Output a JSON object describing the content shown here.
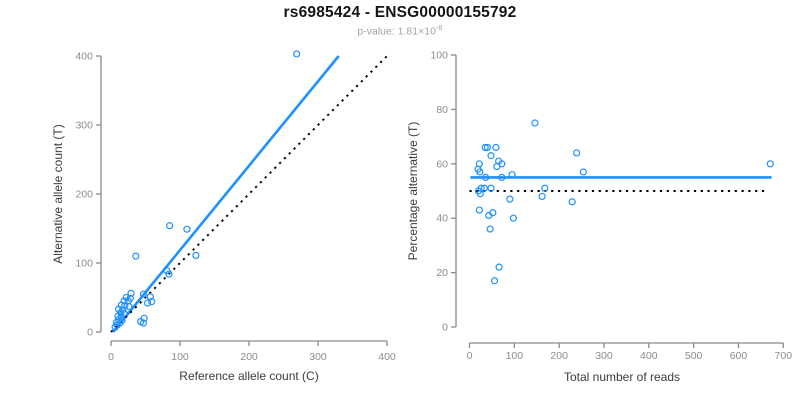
{
  "header": {
    "title": "rs6985424 - ENSG00000155792",
    "subtitle_main": "p-value: 1.81×10",
    "subtitle_exponent": "-8"
  },
  "colors": {
    "accent_blue": "#1E90FF",
    "axis_gray": "#8A8A8A",
    "tick_label_gray": "#8C8C8C",
    "axis_title_dark": "#3C3C3C",
    "title_black": "#151515",
    "subtitle_gray": "#A3A3A3",
    "dotted_black": "#000000"
  },
  "chart_data": [
    {
      "type": "scatter",
      "title": "",
      "xlabel": "Reference allele count (C)",
      "ylabel": "Alternative allele count (T)",
      "xlim": [
        0,
        400
      ],
      "ylim": [
        0,
        400
      ],
      "xticks": [
        0,
        100,
        200,
        300,
        400
      ],
      "yticks": [
        0,
        100,
        200,
        300,
        400
      ],
      "grid": false,
      "legend": null,
      "marker": "open-circle",
      "points": [
        [
          269,
          403
        ],
        [
          85,
          154
        ],
        [
          110,
          149
        ],
        [
          123,
          111
        ],
        [
          36,
          110
        ],
        [
          81,
          89
        ],
        [
          84,
          84
        ],
        [
          29,
          56
        ],
        [
          47,
          55
        ],
        [
          57,
          51
        ],
        [
          22,
          50
        ],
        [
          28,
          49
        ],
        [
          19,
          45
        ],
        [
          25,
          45
        ],
        [
          59,
          44
        ],
        [
          53,
          42
        ],
        [
          15,
          39
        ],
        [
          20,
          38
        ],
        [
          26,
          37
        ],
        [
          11,
          33
        ],
        [
          17,
          32
        ],
        [
          14,
          28
        ],
        [
          19,
          27
        ],
        [
          10,
          23
        ],
        [
          15,
          22
        ],
        [
          11,
          18
        ],
        [
          16,
          17
        ],
        [
          48,
          20
        ],
        [
          43,
          15
        ],
        [
          47,
          13
        ],
        [
          8,
          14
        ],
        [
          13,
          13
        ],
        [
          9,
          10
        ],
        [
          6,
          7
        ]
      ],
      "lines": [
        {
          "name": "regression-line",
          "style": "solid",
          "x1": 3,
          "y1": 0,
          "x2": 330,
          "y2": 400
        },
        {
          "name": "identity-line",
          "style": "dotted",
          "x1": 0,
          "y1": 0,
          "x2": 400,
          "y2": 400
        }
      ]
    },
    {
      "type": "scatter",
      "title": "",
      "xlabel": "Total number of reads",
      "ylabel": "Percentage alternative (T)",
      "xlim": [
        0,
        700
      ],
      "ylim": [
        0,
        100
      ],
      "xticks": [
        0,
        100,
        200,
        300,
        400,
        500,
        600,
        700
      ],
      "yticks": [
        0,
        20,
        40,
        60,
        80,
        100
      ],
      "grid": false,
      "legend": null,
      "marker": "open-circle",
      "points": [
        [
          671,
          60
        ],
        [
          239,
          64
        ],
        [
          254,
          57
        ],
        [
          229,
          46
        ],
        [
          146,
          75
        ],
        [
          168,
          51
        ],
        [
          162,
          48
        ],
        [
          35,
          66
        ],
        [
          40,
          66
        ],
        [
          59,
          66
        ],
        [
          48,
          63
        ],
        [
          65,
          61
        ],
        [
          72,
          60
        ],
        [
          61,
          59
        ],
        [
          22,
          60
        ],
        [
          19,
          58
        ],
        [
          23,
          57
        ],
        [
          36,
          55
        ],
        [
          72,
          55
        ],
        [
          95,
          56
        ],
        [
          26,
          51
        ],
        [
          33,
          51
        ],
        [
          48,
          51
        ],
        [
          20,
          50
        ],
        [
          24,
          49
        ],
        [
          90,
          47
        ],
        [
          22,
          43
        ],
        [
          43,
          41
        ],
        [
          52,
          42
        ],
        [
          98,
          40
        ],
        [
          46,
          36
        ],
        [
          66,
          22
        ],
        [
          56,
          17
        ]
      ],
      "lines": [
        {
          "name": "mean-percentage-line",
          "style": "solid",
          "x1": 2,
          "y1": 55,
          "x2": 674,
          "y2": 55
        },
        {
          "name": "expected-50-percent-line",
          "style": "dotted",
          "x1": 0,
          "y1": 50,
          "x2": 662,
          "y2": 50
        }
      ]
    }
  ]
}
